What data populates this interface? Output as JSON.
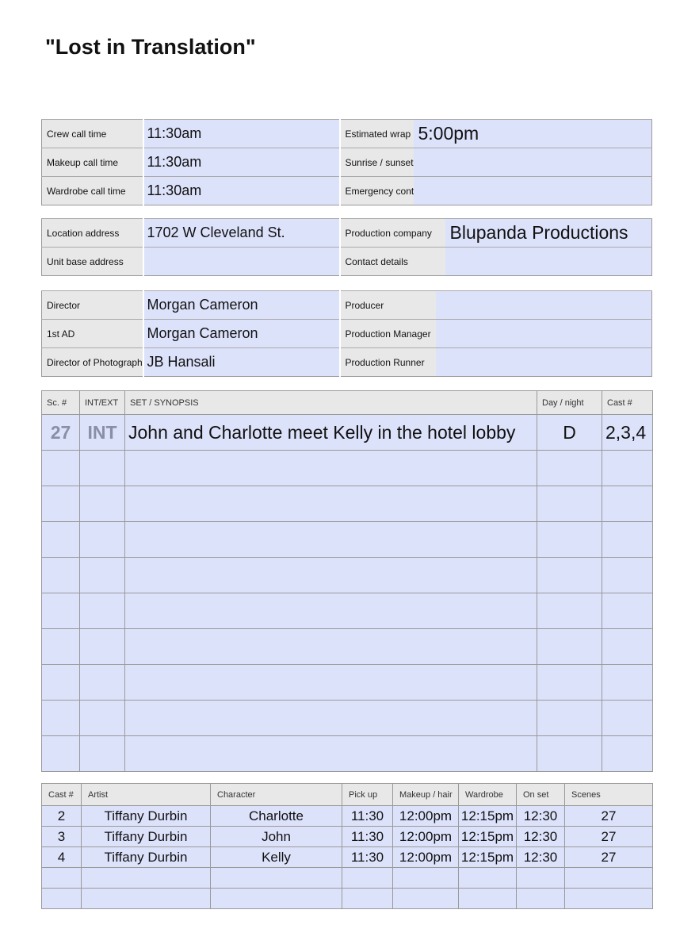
{
  "title": "\"Lost in Translation\"",
  "times": [
    {
      "label": "Crew call time",
      "value": "11:30am",
      "label2": "Estimated wrap",
      "value2": "5:00pm"
    },
    {
      "label": "Makeup call time",
      "value": "11:30am",
      "label2": "Sunrise / sunset",
      "value2": ""
    },
    {
      "label": "Wardrobe call time",
      "value": "11:30am",
      "label2": "Emergency contact",
      "value2": ""
    }
  ],
  "locations": [
    {
      "label": "Location address",
      "value": "1702 W Cleveland St.",
      "label2": "Production company",
      "value2": "Blupanda Productions"
    },
    {
      "label": "Unit base address",
      "value": "",
      "label2": "Contact details",
      "value2": ""
    }
  ],
  "crew": [
    {
      "label": "Director",
      "value": "Morgan Cameron",
      "label2": "Producer",
      "value2": ""
    },
    {
      "label": "1st AD",
      "value": "Morgan Cameron",
      "label2": "Production Manager",
      "value2": ""
    },
    {
      "label": "Director of Photography",
      "value": "JB Hansali",
      "label2": "Production Runner",
      "value2": ""
    }
  ],
  "scenes": {
    "headers": [
      "Sc. #",
      "INT/EXT",
      "SET / SYNOPSIS",
      "Day / night",
      "Cast #"
    ],
    "rows": [
      {
        "sc": "27",
        "intext": "INT",
        "synopsis": "John and Charlotte meet Kelly in the hotel lobby",
        "daynight": "D",
        "cast": "2,3,4"
      }
    ]
  },
  "cast": {
    "headers": [
      "Cast #",
      "Artist",
      "Character",
      "Pick up",
      "Makeup / hair",
      "Wardrobe",
      "On set",
      "Scenes"
    ],
    "rows": [
      [
        "2",
        "Tiffany Durbin",
        "Charlotte",
        "11:30",
        "12:00pm",
        "12:15pm",
        "12:30",
        "27"
      ],
      [
        "3",
        "Tiffany Durbin",
        "John",
        "11:30",
        "12:00pm",
        "12:15pm",
        "12:30",
        "27"
      ],
      [
        "4",
        "Tiffany Durbin",
        "Kelly",
        "11:30",
        "12:00pm",
        "12:15pm",
        "12:30",
        "27"
      ]
    ]
  }
}
